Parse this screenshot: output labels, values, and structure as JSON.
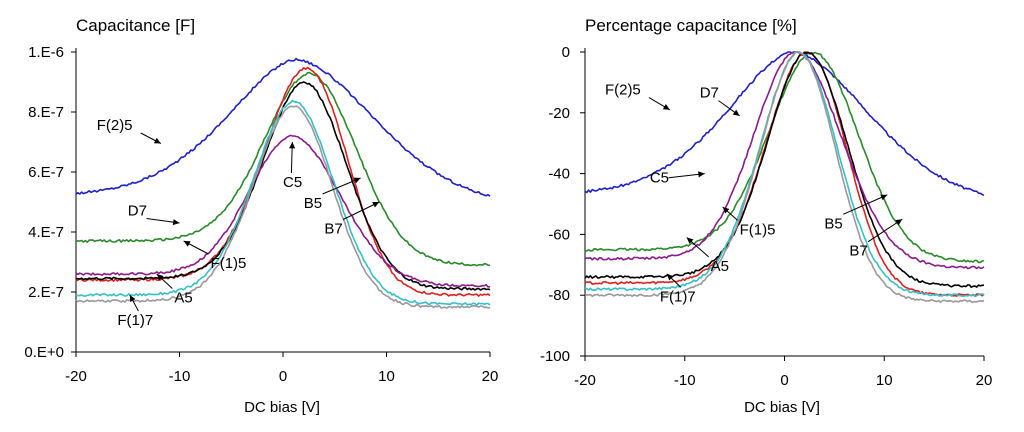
{
  "charts": [
    {
      "id": "left",
      "type": "line",
      "title": "Capacitance [F]",
      "xlabel": "DC bias [V]",
      "ylabel": "",
      "xlim": [
        -20,
        20
      ],
      "ylim": [
        0,
        1e-06
      ],
      "xticks": [
        -20,
        -10,
        0,
        10,
        20
      ],
      "xtick_labels": [
        "-20",
        "-10",
        "0",
        "10",
        "20"
      ],
      "yticks": [
        0,
        2e-07,
        4e-07,
        6e-07,
        8e-07,
        1e-06
      ],
      "ytick_labels": [
        "0.E+0",
        "2.E-7",
        "4.E-7",
        "6.E-7",
        "8.E-7",
        "1.E-6"
      ],
      "grid": false,
      "series": [
        {
          "name": "F(2)5",
          "color": "#1f1fc8",
          "peak_x": 1.2,
          "peak_y": 9.75e-07,
          "left_y": 5.2e-07,
          "right_y": 4.85e-07,
          "wl": 9.5,
          "wr": 11.0,
          "pl": 1.7,
          "pr": 1.8
        },
        {
          "name": "D7",
          "color": "#2a8a2a",
          "peak_x": 2.5,
          "peak_y": 9.28e-07,
          "left_y": 3.7e-07,
          "right_y": 2.9e-07,
          "wl": 6.2,
          "wr": 6.5,
          "pl": 1.9,
          "pr": 2.0
        },
        {
          "name": "F(1)5",
          "color": "#e02020",
          "peak_x": 2.2,
          "peak_y": 9.45e-07,
          "left_y": 2.4e-07,
          "right_y": 1.9e-07,
          "wl": 5.8,
          "wr": 5.6,
          "pl": 1.9,
          "pr": 2.1
        },
        {
          "name": "A5",
          "color": "#000000",
          "peak_x": 2.0,
          "peak_y": 9e-07,
          "left_y": 2.45e-07,
          "right_y": 2.1e-07,
          "wl": 5.6,
          "wr": 5.8,
          "pl": 1.9,
          "pr": 2.0
        },
        {
          "name": "C5",
          "color": "#8b1a8b",
          "peak_x": 1.0,
          "peak_y": 7.2e-07,
          "left_y": 2.6e-07,
          "right_y": 2.2e-07,
          "wl": 6.0,
          "wr": 6.5,
          "pl": 2.0,
          "pr": 1.9
        },
        {
          "name": "B5",
          "color": "#35c0c8",
          "peak_x": 1.0,
          "peak_y": 8.35e-07,
          "left_y": 1.9e-07,
          "right_y": 1.6e-07,
          "wl": 5.5,
          "wr": 5.5,
          "pl": 1.9,
          "pr": 2.0
        },
        {
          "name": "F(1)7",
          "color": "#999999",
          "peak_x": 1.0,
          "peak_y": 8.2e-07,
          "left_y": 1.7e-07,
          "right_y": 1.5e-07,
          "wl": 5.5,
          "wr": 5.3,
          "pl": 1.9,
          "pr": 2.0
        }
      ],
      "annotations": [
        {
          "text": "F(2)5",
          "x": -18,
          "y": 7.4e-07,
          "ax": -11.8,
          "ay": 6.95e-07,
          "anchor": "start"
        },
        {
          "text": "D7",
          "x": -15,
          "y": 4.55e-07,
          "ax": -10,
          "ay": 4.3e-07,
          "anchor": "start"
        },
        {
          "text": "F(1)5",
          "x": -7,
          "y": 2.8e-07,
          "ax": -9.6,
          "ay": 3.7e-07,
          "anchor": "start"
        },
        {
          "text": "A5",
          "x": -10.5,
          "y": 1.65e-07,
          "ax": -12.2,
          "ay": 2.6e-07,
          "anchor": "start"
        },
        {
          "text": "F(1)7",
          "x": -16,
          "y": 9e-08,
          "ax": -14.8,
          "ay": 1.9e-07,
          "anchor": "start"
        },
        {
          "text": "C5",
          "x": 0,
          "y": 5.5e-07,
          "ax": 0.9,
          "ay": 7e-07,
          "anchor": "start"
        },
        {
          "text": "B5",
          "x": 2,
          "y": 4.8e-07,
          "ax": 7.5,
          "ay": 5.8e-07,
          "anchor": "start"
        },
        {
          "text": "B7",
          "x": 4,
          "y": 3.95e-07,
          "ax": 9.3,
          "ay": 5e-07,
          "anchor": "start"
        }
      ]
    },
    {
      "id": "right",
      "type": "line",
      "title": "Percentage capacitance [%]",
      "xlabel": "DC bias [V]",
      "ylabel": "",
      "xlim": [
        -20,
        20
      ],
      "ylim": [
        -100,
        0
      ],
      "xticks": [
        -20,
        -10,
        0,
        10,
        20
      ],
      "xtick_labels": [
        "-20",
        "-10",
        "0",
        "10",
        "20"
      ],
      "yticks": [
        -100,
        -80,
        -60,
        -40,
        -20,
        0
      ],
      "ytick_labels": [
        "-100",
        "-80",
        "-60",
        "-40",
        "-20",
        "0"
      ],
      "grid": false,
      "series": [
        {
          "name": "F(2)5",
          "color": "#1f1fc8",
          "peak_x": 0.8,
          "peak_y": 0,
          "left_y": -47,
          "right_y": -50,
          "wl": 9.5,
          "wr": 11.0,
          "pl": 1.7,
          "pr": 1.8
        },
        {
          "name": "D7",
          "color": "#2a8a2a",
          "peak_x": 2.8,
          "peak_y": 0,
          "left_y": -65,
          "right_y": -69,
          "wl": 6.2,
          "wr": 6.5,
          "pl": 1.9,
          "pr": 2.0
        },
        {
          "name": "F(1)5",
          "color": "#e02020",
          "peak_x": 2.2,
          "peak_y": 0,
          "left_y": -76,
          "right_y": -80,
          "wl": 5.8,
          "wr": 5.6,
          "pl": 1.9,
          "pr": 2.1
        },
        {
          "name": "A5",
          "color": "#000000",
          "peak_x": 2.2,
          "peak_y": 0,
          "left_y": -74,
          "right_y": -77,
          "wl": 5.6,
          "wr": 5.8,
          "pl": 1.9,
          "pr": 2.0
        },
        {
          "name": "C5",
          "color": "#8b1a8b",
          "peak_x": 1.2,
          "peak_y": 0,
          "left_y": -68,
          "right_y": -71,
          "wl": 6.0,
          "wr": 6.5,
          "pl": 2.0,
          "pr": 1.9
        },
        {
          "name": "B5",
          "color": "#35c0c8",
          "peak_x": 1.4,
          "peak_y": 0,
          "left_y": -78,
          "right_y": -80,
          "wl": 5.5,
          "wr": 5.5,
          "pl": 1.9,
          "pr": 2.0
        },
        {
          "name": "F(1)7",
          "color": "#999999",
          "peak_x": 1.4,
          "peak_y": 0,
          "left_y": -80,
          "right_y": -82,
          "wl": 5.5,
          "wr": 5.3,
          "pl": 1.9,
          "pr": 2.0
        }
      ],
      "annotations": [
        {
          "text": "F(2)5",
          "x": -18,
          "y": -14,
          "ax": -11.5,
          "ay": -19,
          "anchor": "start"
        },
        {
          "text": "D7",
          "x": -8.5,
          "y": -15,
          "ax": -4.5,
          "ay": -21,
          "anchor": "start"
        },
        {
          "text": "C5",
          "x": -13.5,
          "y": -43,
          "ax": -8,
          "ay": -40,
          "anchor": "start"
        },
        {
          "text": "F(1)5",
          "x": -4.5,
          "y": -60,
          "ax": -6.2,
          "ay": -51,
          "anchor": "start"
        },
        {
          "text": "A5",
          "x": -7.4,
          "y": -72,
          "ax": -9.8,
          "ay": -61,
          "anchor": "start"
        },
        {
          "text": "F(1)7",
          "x": -12.5,
          "y": -82,
          "ax": -11.8,
          "ay": -73,
          "anchor": "start"
        },
        {
          "text": "B5",
          "x": 4,
          "y": -58,
          "ax": 10.3,
          "ay": -47,
          "anchor": "start"
        },
        {
          "text": "B7",
          "x": 6.5,
          "y": -67,
          "ax": 11.8,
          "ay": -55,
          "anchor": "start"
        }
      ]
    }
  ]
}
